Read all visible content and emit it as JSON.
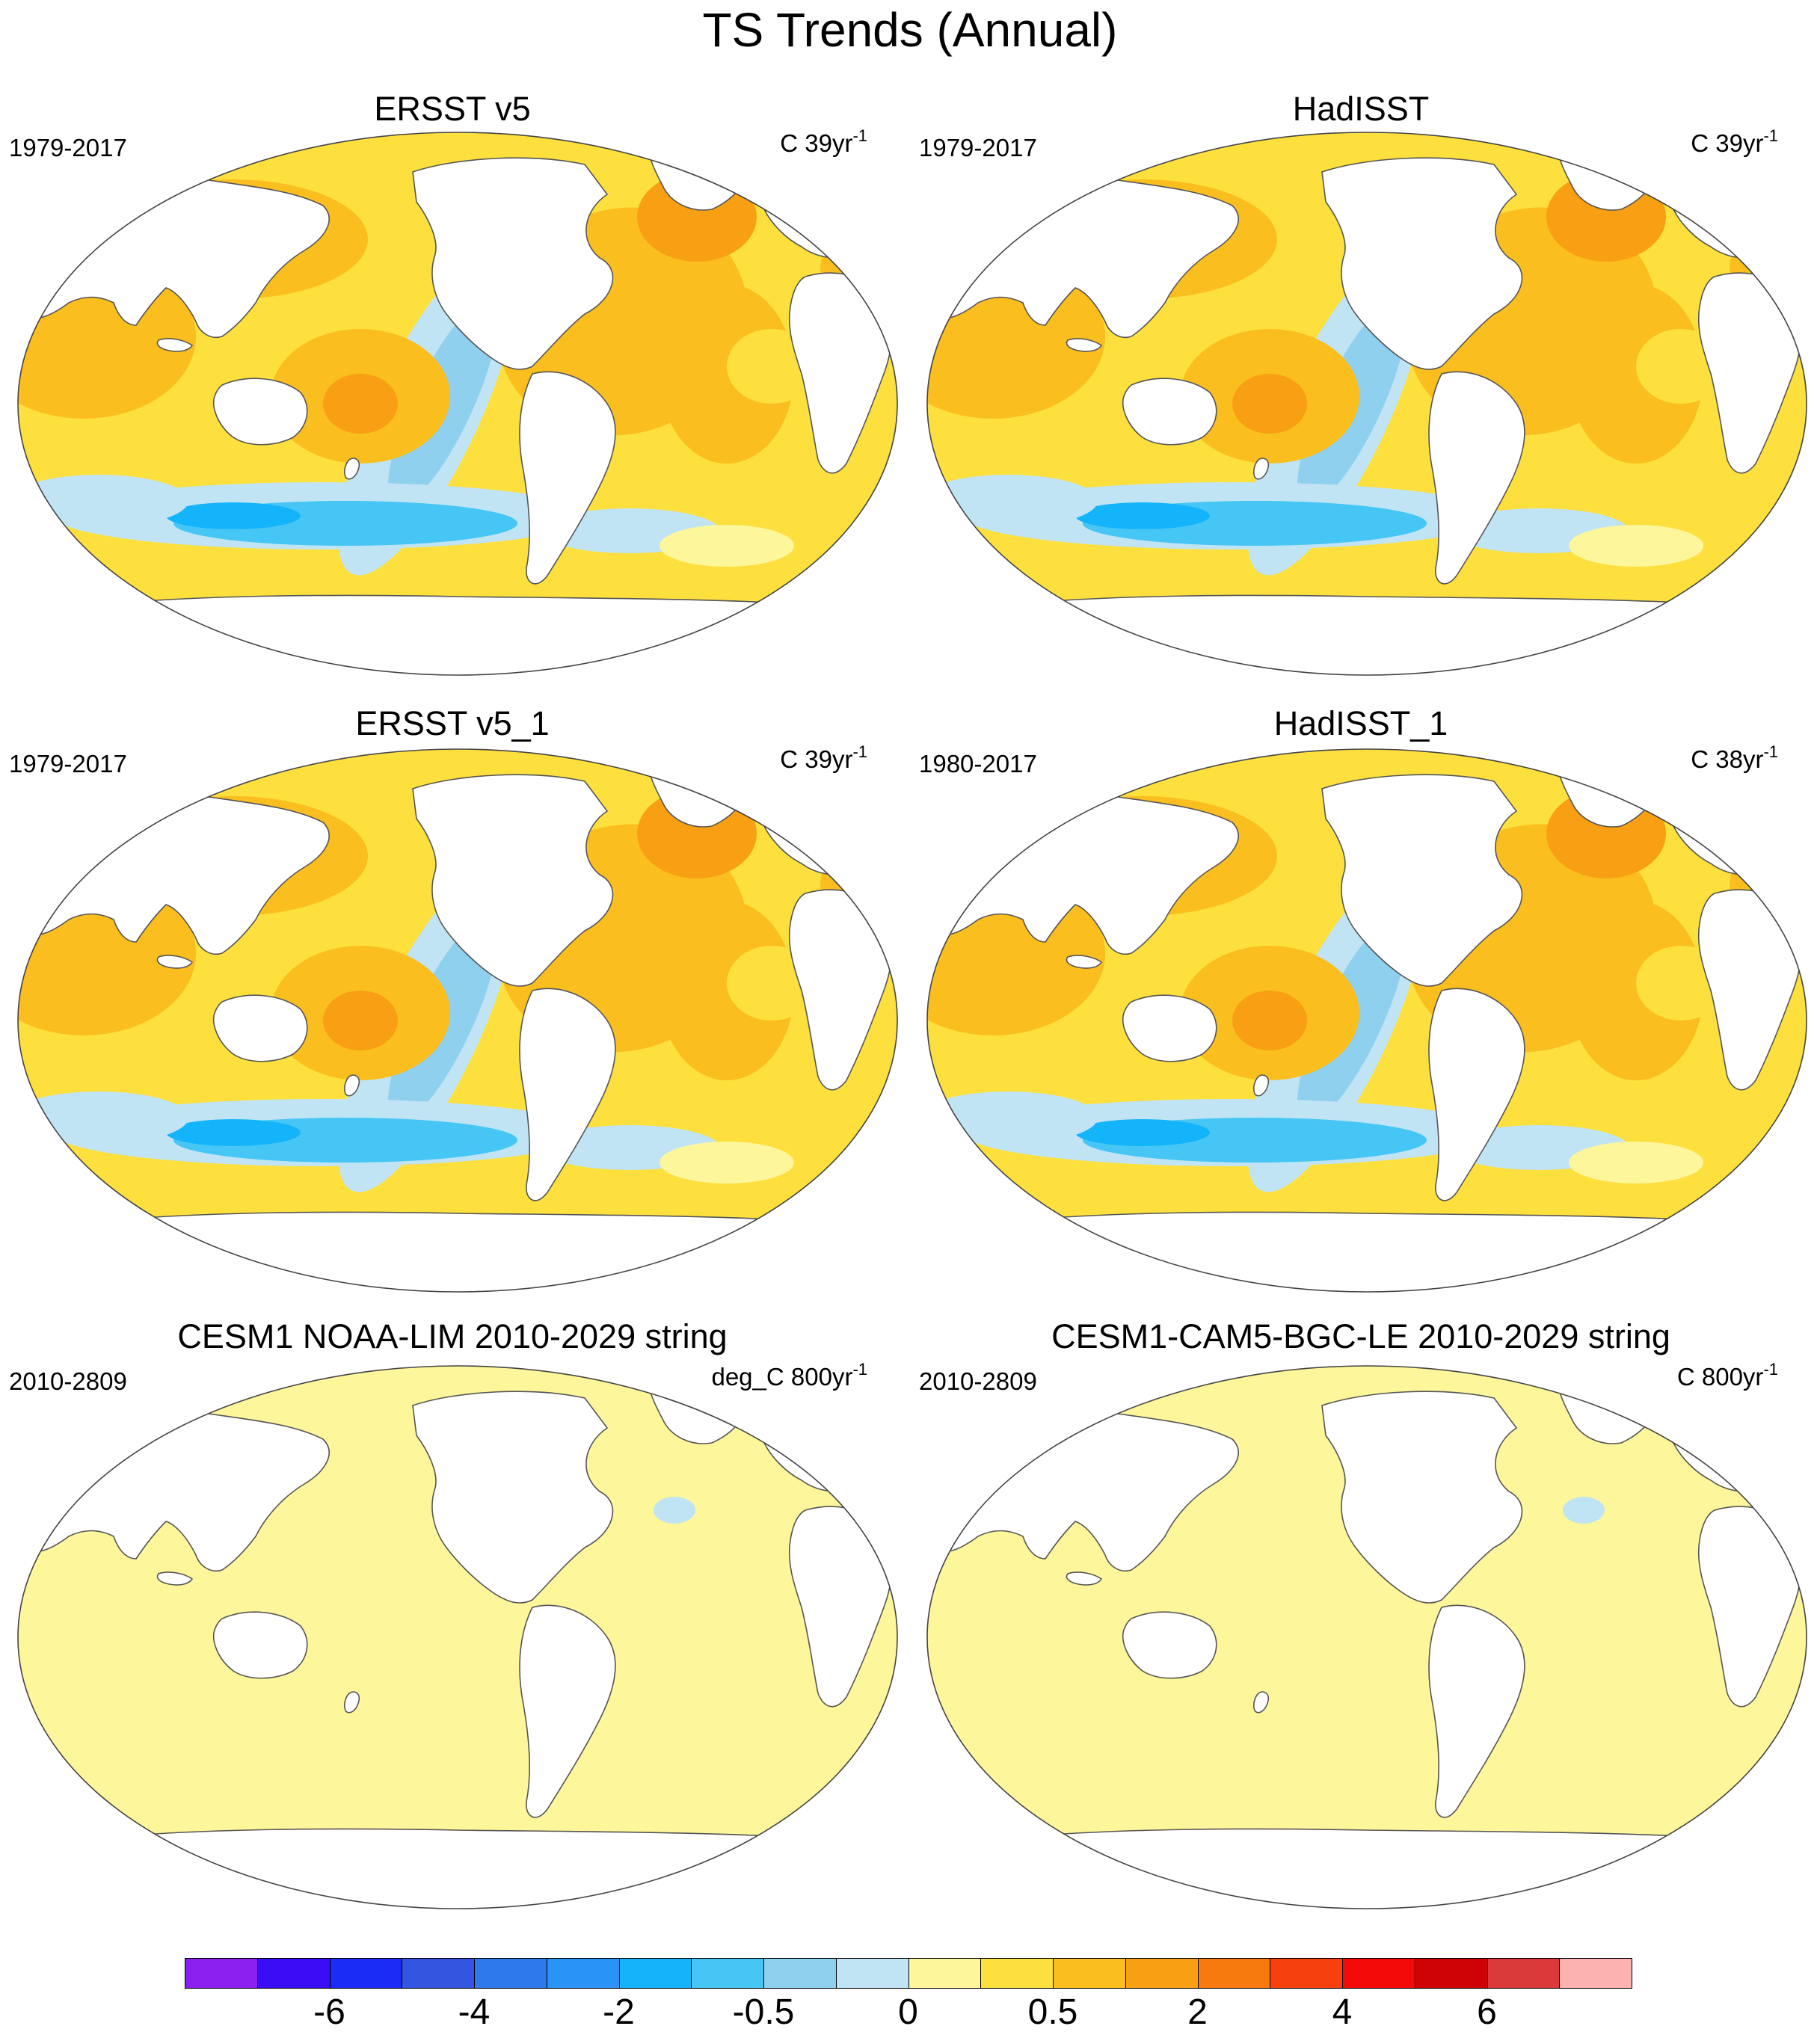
{
  "figure": {
    "title": "TS Trends (Annual)"
  },
  "panels": [
    {
      "title": "ERSST v5",
      "period": "1979-2017",
      "units_prefix": "C 39yr",
      "units_exp": "-1",
      "pattern": "trend"
    },
    {
      "title": "HadISST",
      "period": "1979-2017",
      "units_prefix": "C 39yr",
      "units_exp": "-1",
      "pattern": "trend"
    },
    {
      "title": "ERSST v5_1",
      "period": "1979-2017",
      "units_prefix": "C 39yr",
      "units_exp": "-1",
      "pattern": "trend"
    },
    {
      "title": "HadISST_1",
      "period": "1980-2017",
      "units_prefix": "C 38yr",
      "units_exp": "-1",
      "pattern": "trend"
    },
    {
      "title": "CESM1 NOAA-LIM 2010-2029 string",
      "period": "2010-2809",
      "units_prefix": "deg_C 800yr",
      "units_exp": "-1",
      "pattern": "flat"
    },
    {
      "title": "CESM1-CAM5-BGC-LE 2010-2029 string",
      "period": "2010-2809",
      "units_prefix": "C 800yr",
      "units_exp": "-1",
      "pattern": "flat"
    }
  ],
  "colorbar": {
    "colors": [
      "#8a1ff0",
      "#3b0cf6",
      "#1a2cf5",
      "#3355e0",
      "#2e79ec",
      "#2a94f6",
      "#14b4fb",
      "#46c6f5",
      "#8fd0ee",
      "#c0e4f4",
      "#fef69a",
      "#fde03e",
      "#fbbe1f",
      "#f89f13",
      "#f77a0f",
      "#f6400d",
      "#f50a0a",
      "#cf0206",
      "#db3a3a",
      "#fdb2b2"
    ],
    "labels": [
      "-6",
      "-4",
      "-2",
      "-0.5",
      "0",
      "0.5",
      "2",
      "4",
      "6"
    ],
    "label_boundaries": [
      2,
      4,
      6,
      8,
      10,
      12,
      14,
      16,
      18
    ]
  }
}
